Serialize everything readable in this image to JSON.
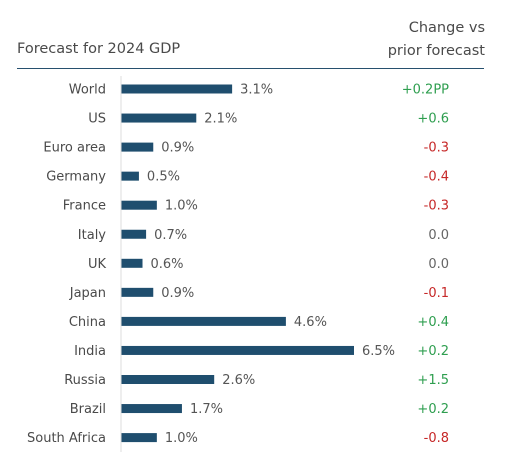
{
  "chart_data": {
    "type": "bar",
    "orientation": "horizontal",
    "title": "Forecast for 2024 GDP",
    "change_header_line1": "Change vs",
    "change_header_line2": "prior forecast",
    "categories": [
      "World",
      "US",
      "Euro area",
      "Germany",
      "France",
      "Italy",
      "UK",
      "Japan",
      "China",
      "India",
      "Russia",
      "Brazil",
      "South Africa"
    ],
    "values": [
      3.1,
      2.1,
      0.9,
      0.5,
      1.0,
      0.7,
      0.6,
      0.9,
      4.6,
      6.5,
      2.6,
      1.7,
      1.0
    ],
    "value_labels": [
      "3.1%",
      "2.1%",
      "0.9%",
      "0.5%",
      "1.0%",
      "0.7%",
      "0.6%",
      "0.9%",
      "4.6%",
      "6.5%",
      "2.6%",
      "1.7%",
      "1.0%"
    ],
    "change_labels": [
      "+0.2PP",
      "+0.6",
      "-0.3",
      "-0.4",
      "-0.3",
      "0.0",
      "0.0",
      "-0.1",
      "+0.4",
      "+0.2",
      "+1.5",
      "+0.2",
      "-0.8"
    ],
    "xlim": [
      0,
      6.5
    ],
    "grid": false,
    "colors": {
      "bar": "#1f4e6e",
      "positive": "#2e9e4f",
      "negative": "#c62828",
      "neutral": "#666666"
    }
  }
}
